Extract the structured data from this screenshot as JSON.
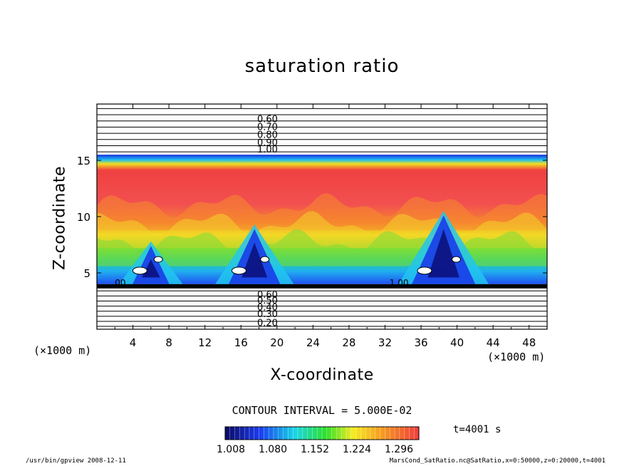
{
  "chart_data": {
    "type": "heatmap",
    "title": "saturation ratio",
    "xlabel": "X-coordinate",
    "ylabel": "Z-coordinate",
    "x_unit": "(×1000 m)",
    "x_unit_right": "(×1000 m)",
    "xlim": [
      0,
      50
    ],
    "ylim": [
      0,
      20
    ],
    "x_ticks": [
      4,
      8,
      12,
      16,
      20,
      24,
      28,
      32,
      36,
      40,
      44,
      48
    ],
    "y_ticks": [
      5,
      10,
      15
    ],
    "contour_labels_upper": [
      "0.60",
      "0.70",
      "0.80",
      "0.90",
      "1.00"
    ],
    "contour_labels_lower": [
      "0.60",
      "0.50",
      "0.40",
      "0.30",
      "0.20"
    ],
    "contour_label_left": ".00",
    "contour_label_mid": "1.00",
    "contour_interval_text": "CONTOUR INTERVAL = 5.000E-02",
    "colorbar_ticks": [
      "1.008",
      "1.080",
      "1.152",
      "1.224",
      "1.296"
    ],
    "colorbar_range": [
      1.008,
      1.296
    ],
    "time_text": "t=4001 s",
    "cloud_peaks": [
      {
        "x": 6,
        "z_top": 7.8
      },
      {
        "x": 17.5,
        "z_top": 9.3
      },
      {
        "x": 38.5,
        "z_top": 10.5
      }
    ],
    "saturated_layer_z": [
      4,
      15.5
    ]
  },
  "footer": {
    "left": "/usr/bin/gpview  2008-12-11",
    "right": "MarsCond_SatRatio.nc@SatRatio,x=0:50000,z=0:20000,t=4001"
  },
  "colors": {
    "background": "#ffffff",
    "red": "#f03c3c",
    "orange": "#f7a020",
    "yellow": "#f5ec22",
    "green": "#2ee02a",
    "cyan": "#18d6e6",
    "blue": "#1a44f0",
    "navy": "#0a0a7a"
  }
}
